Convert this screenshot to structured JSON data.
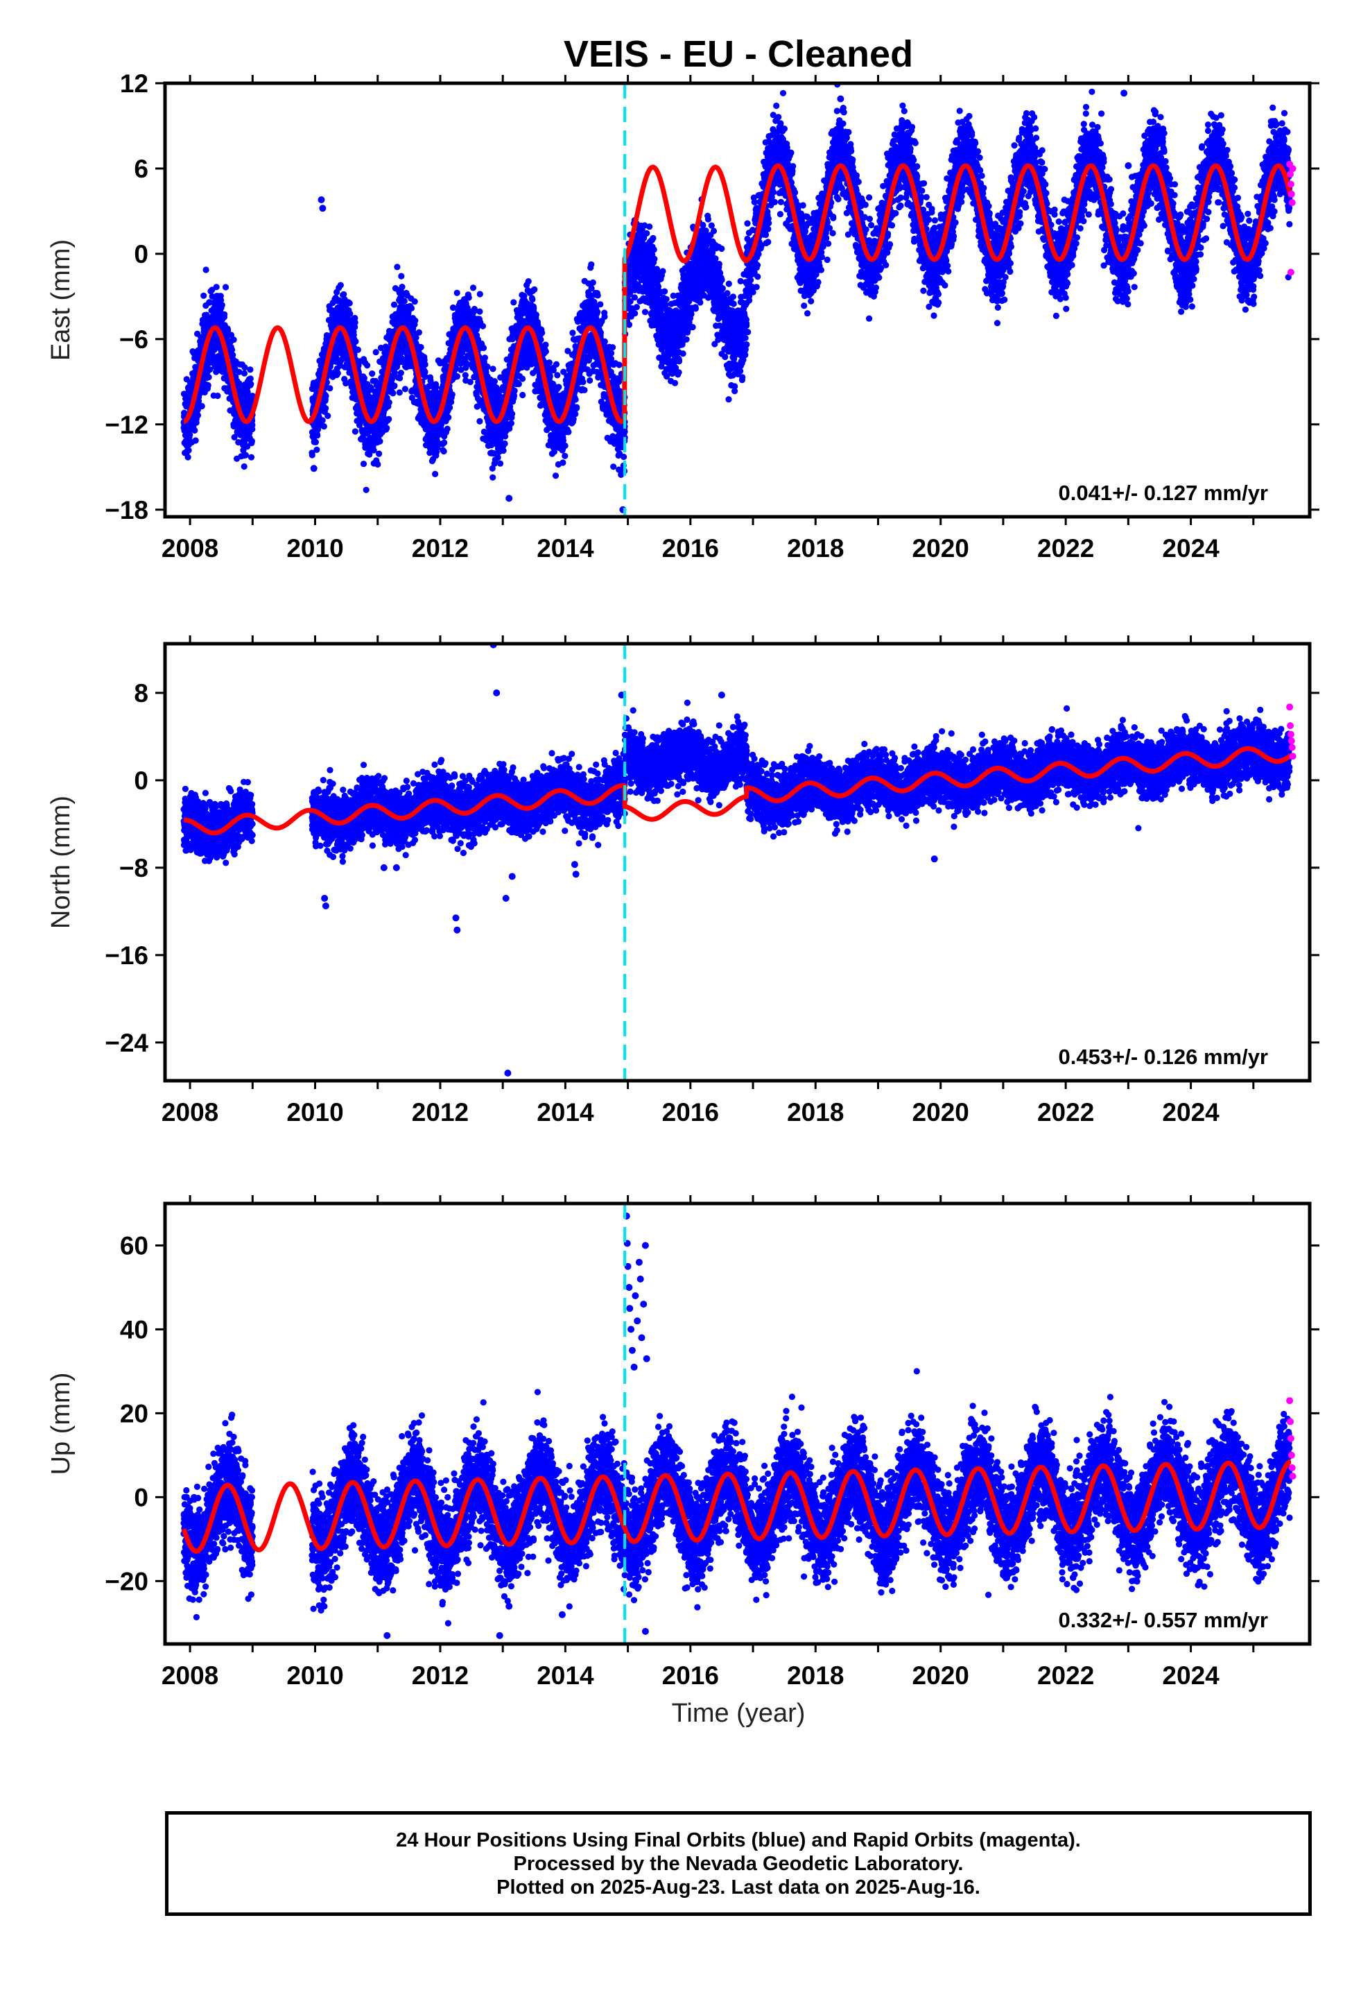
{
  "title": "VEIS  - EU - Cleaned",
  "xlabel": "Time (year)",
  "caption": {
    "line1": "24 Hour Positions Using Final Orbits (blue) and Rapid Orbits (magenta).",
    "line2": "Processed by the Nevada Geodetic Laboratory.",
    "line3": "Plotted on 2025-Aug-23. Last data on 2025-Aug-16."
  },
  "colors": {
    "final": "#0000ff",
    "rapid": "#ff00ff",
    "model": "#ff0000",
    "break": "#00e5ee"
  },
  "chart_data": [
    {
      "type": "scatter",
      "ylabel": "East (mm)",
      "xlim": [
        2007.6,
        2025.9
      ],
      "ylim": [
        -18.5,
        12
      ],
      "xticks": [
        2008,
        2010,
        2012,
        2014,
        2016,
        2018,
        2020,
        2022,
        2024
      ],
      "yticks": [
        12,
        6,
        0,
        -6,
        -12,
        -18
      ],
      "velocity": "0.041+/- 0.127 mm/yr",
      "break_year": 2014.95,
      "series": [
        {
          "role": "model",
          "segments": [
            {
              "start": 2007.9,
              "end": 2014.95,
              "base": -8.5,
              "amp": 3.3,
              "peak": 0.4,
              "trend": 0
            },
            {
              "start": 2014.95,
              "end": 2016.9,
              "base": 2.8,
              "amp": 3.3,
              "peak": 0.4,
              "trend": 0
            },
            {
              "start": 2016.9,
              "end": 2025.6,
              "base": 2.9,
              "amp": 3.3,
              "peak": 0.4,
              "trend": 0
            }
          ]
        },
        {
          "role": "final",
          "data_ranges": [
            [
              2007.9,
              2009.0
            ],
            [
              2009.95,
              2014.95
            ],
            [
              2014.95,
              2025.58
            ]
          ],
          "offsets": [
            {
              "start": 2007.9,
              "end": 2014.95,
              "base": -8.5,
              "amp": 3.3,
              "peak": 0.4
            },
            {
              "start": 2014.95,
              "end": 2016.9,
              "base": -3.2,
              "amp": 2.8,
              "peak": 0.2
            },
            {
              "start": 2016.9,
              "end": 2025.6,
              "base": 3.0,
              "amp": 3.8,
              "peak": 0.4
            }
          ],
          "noise": 1.4,
          "outliers": [
            [
              2010.1,
              3.8
            ],
            [
              2010.12,
              3.2
            ],
            [
              2009.98,
              -15.1
            ],
            [
              2013.1,
              -17.2
            ],
            [
              2014.92,
              -18.0
            ],
            [
              2022.93,
              11.3
            ],
            [
              2018.4,
              10.9
            ],
            [
              2023.0,
              6.2
            ]
          ]
        },
        {
          "role": "rapid",
          "x": [
            2025.58,
            2025.59,
            2025.6,
            2025.61,
            2025.62,
            2025.63,
            2025.6
          ],
          "y": [
            6.3,
            5.6,
            4.9,
            4.2,
            3.6,
            6.0,
            -1.3
          ]
        }
      ]
    },
    {
      "type": "scatter",
      "ylabel": "North (mm)",
      "xlim": [
        2007.6,
        2025.9
      ],
      "ylim": [
        -27.5,
        12.5
      ],
      "xticks": [
        2008,
        2010,
        2012,
        2014,
        2016,
        2018,
        2020,
        2022,
        2024
      ],
      "yticks": [
        8,
        0,
        -8,
        -16,
        -24
      ],
      "velocity": "0.453+/- 0.126 mm/yr",
      "break_year": 2014.95,
      "series": [
        {
          "role": "model",
          "segments": [
            {
              "start": 2007.9,
              "end": 2014.95,
              "base": -0.7,
              "amp": 0.7,
              "peak": 0.9,
              "trend": 0.45
            },
            {
              "start": 2014.95,
              "end": 2016.9,
              "base": -2.6,
              "amp": 0.7,
              "peak": 0.9,
              "trend": 0.45
            },
            {
              "start": 2016.9,
              "end": 2025.6,
              "base": -1.8,
              "amp": 0.7,
              "peak": 0.9,
              "trend": 0.45
            }
          ]
        },
        {
          "role": "final",
          "data_ranges": [
            [
              2007.9,
              2009.0
            ],
            [
              2009.95,
              2014.95
            ],
            [
              2014.95,
              2025.58
            ]
          ],
          "offsets": [
            {
              "start": 2007.9,
              "end": 2014.95,
              "base": -0.7,
              "amp": 0.7,
              "peak": 0.9,
              "trend": 0.45
            },
            {
              "start": 2014.95,
              "end": 2016.9,
              "base": 1.8,
              "amp": 0.8,
              "peak": 0.9,
              "trend": 0.0
            },
            {
              "start": 2016.9,
              "end": 2025.6,
              "base": -1.8,
              "amp": 0.7,
              "peak": 0.9,
              "trend": 0.45
            }
          ],
          "noise": 1.2,
          "outliers": [
            [
              2012.85,
              12.4
            ],
            [
              2012.9,
              8.0
            ],
            [
              2014.9,
              7.8
            ],
            [
              2016.5,
              7.8
            ],
            [
              2010.15,
              -10.8
            ],
            [
              2010.17,
              -11.5
            ],
            [
              2011.1,
              -8.0
            ],
            [
              2011.3,
              -8.0
            ],
            [
              2012.25,
              -12.6
            ],
            [
              2012.27,
              -13.7
            ],
            [
              2013.05,
              -10.8
            ],
            [
              2013.15,
              -8.8
            ],
            [
              2013.08,
              -26.8
            ],
            [
              2014.15,
              -7.7
            ],
            [
              2014.17,
              -8.6
            ],
            [
              2019.9,
              -7.2
            ]
          ]
        },
        {
          "role": "rapid",
          "x": [
            2025.58,
            2025.59,
            2025.6,
            2025.61,
            2025.62,
            2025.63
          ],
          "y": [
            6.7,
            5.0,
            4.2,
            3.6,
            3.0,
            2.2
          ]
        }
      ]
    },
    {
      "type": "scatter",
      "ylabel": "Up (mm)",
      "xlim": [
        2007.6,
        2025.9
      ],
      "ylim": [
        -35,
        70
      ],
      "xticks": [
        2008,
        2010,
        2012,
        2014,
        2016,
        2018,
        2020,
        2022,
        2024
      ],
      "yticks": [
        60,
        40,
        20,
        0,
        -20
      ],
      "velocity": "0.332+/- 0.557 mm/yr",
      "break_year": 2014.95,
      "series": [
        {
          "role": "model",
          "segments": [
            {
              "start": 2007.9,
              "end": 2025.6,
              "base": -2.5,
              "amp": 7.8,
              "peak": 0.6,
              "trend": 0.33
            }
          ]
        },
        {
          "role": "final",
          "data_ranges": [
            [
              2007.9,
              2009.0
            ],
            [
              2009.95,
              2014.95
            ],
            [
              2014.95,
              2025.58
            ]
          ],
          "offsets": [
            {
              "start": 2007.9,
              "end": 2025.6,
              "base": -2.5,
              "amp": 7.8,
              "peak": 0.6,
              "trend": 0.33
            }
          ],
          "noise": 5.5,
          "outliers": [
            [
              2014.98,
              67.0
            ],
            [
              2014.99,
              60.5
            ],
            [
              2015.0,
              55.0
            ],
            [
              2015.02,
              50.0
            ],
            [
              2015.03,
              45.0
            ],
            [
              2015.05,
              40.0
            ],
            [
              2015.07,
              35.0
            ],
            [
              2015.1,
              31.0
            ],
            [
              2015.12,
              48.0
            ],
            [
              2015.15,
              42.0
            ],
            [
              2015.18,
              56.0
            ],
            [
              2015.2,
              52.0
            ],
            [
              2015.22,
              38.0
            ],
            [
              2015.25,
              46.0
            ],
            [
              2015.28,
              60.0
            ],
            [
              2015.3,
              33.0
            ],
            [
              2011.15,
              -33.0
            ],
            [
              2012.95,
              -33.0
            ],
            [
              2015.28,
              -32.0
            ],
            [
              2013.1,
              -26.0
            ],
            [
              2013.95,
              -28.0
            ]
          ]
        },
        {
          "role": "rapid",
          "x": [
            2025.58,
            2025.59,
            2025.6,
            2025.61,
            2025.62,
            2025.63
          ],
          "y": [
            23.0,
            18.0,
            14.0,
            10.0,
            7.0,
            5.0
          ]
        }
      ]
    }
  ]
}
